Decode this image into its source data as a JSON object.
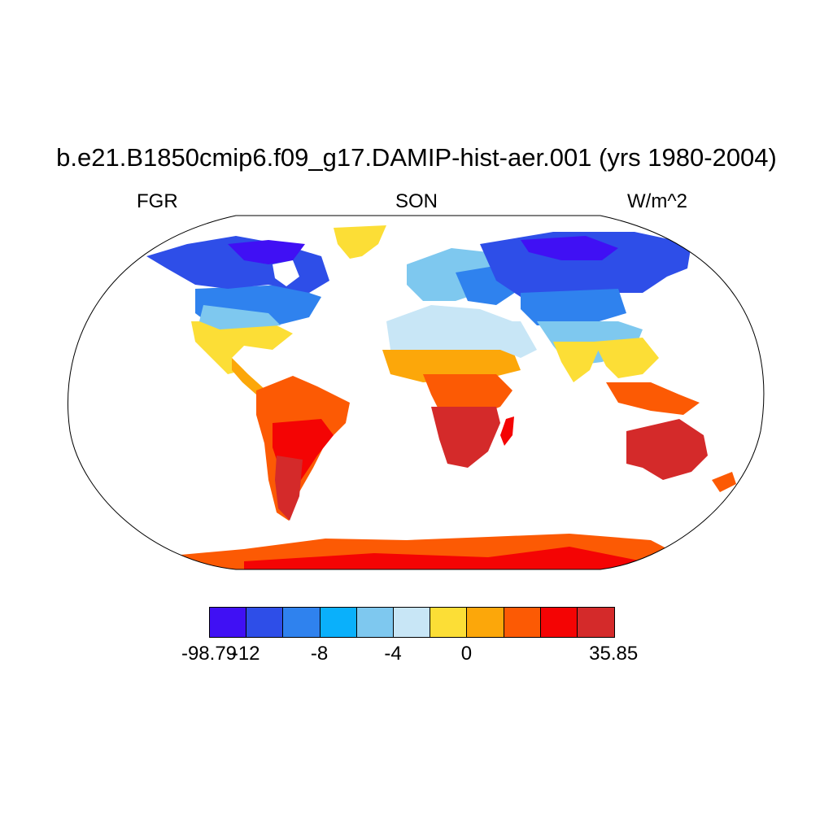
{
  "title": "b.e21.B1850cmip6.f09_g17.DAMIP-hist-aer.001 (yrs 1980-2004)",
  "left_label": "FGR",
  "center_label": "SON",
  "right_label": "W/m^2",
  "colorbar": {
    "colors": [
      "#4010f4",
      "#2e4ee8",
      "#2f82ee",
      "#0ab0fb",
      "#7ec8ef",
      "#c8e6f6",
      "#fcde36",
      "#fca70a",
      "#fc5a04",
      "#f40404",
      "#d42a2a"
    ],
    "labels": [
      "-98.79",
      "-12",
      "-8",
      "-4",
      "0",
      "35.85"
    ]
  }
}
